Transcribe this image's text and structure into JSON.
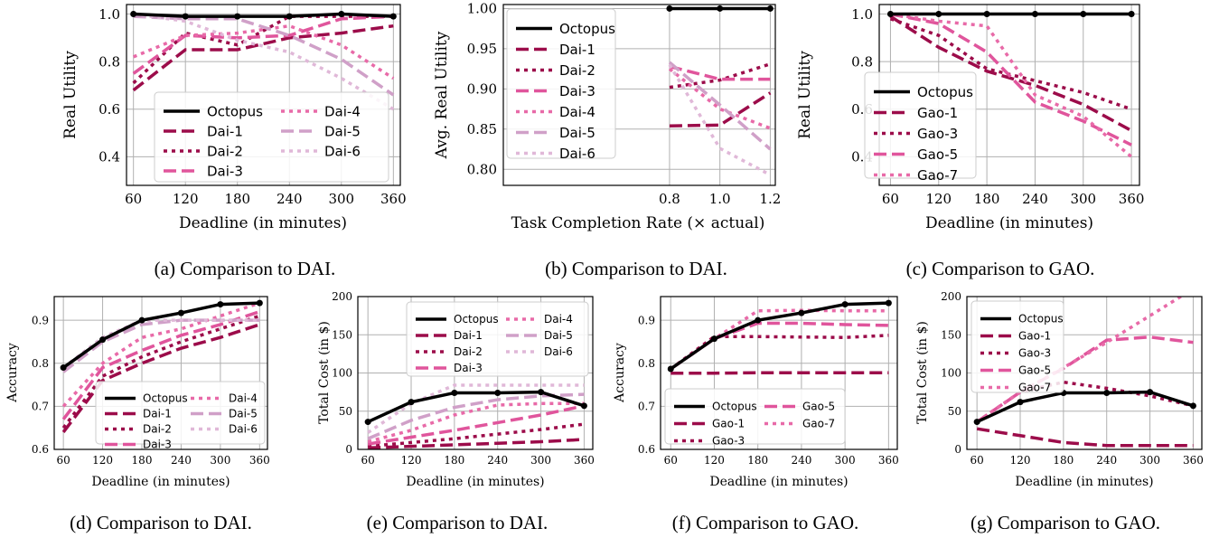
{
  "colors": {
    "black": "#000000",
    "c1": "#9c0c4a",
    "c2": "#9c0c4a",
    "c3": "#e0559c",
    "c4": "#e86aa8",
    "c5": "#d0a0c8",
    "c6": "#e0b8d8"
  },
  "chart_data": [
    {
      "id": "a",
      "type": "line",
      "xlabel": "Deadline (in minutes)",
      "ylabel": "Real Utility",
      "x": [
        60,
        120,
        180,
        240,
        300,
        360
      ],
      "xticks": [
        "60",
        "120",
        "180",
        "240",
        "300",
        "360"
      ],
      "xlim": [
        52,
        368
      ],
      "ylim": [
        0.28,
        1.04
      ],
      "yticks": [
        "0.4",
        "0.6",
        "0.8",
        "1.0"
      ],
      "ytick_values": [
        0.4,
        0.6,
        0.8,
        1.0
      ],
      "legend": {
        "placement": "lower-center",
        "columns": 2
      },
      "series": [
        {
          "name": "Octopus",
          "values": [
            1.0,
            0.99,
            0.99,
            0.99,
            1.0,
            0.99
          ]
        },
        {
          "name": "Dai-1",
          "values": [
            0.68,
            0.85,
            0.85,
            0.9,
            0.92,
            0.95
          ]
        },
        {
          "name": "Dai-2",
          "values": [
            0.71,
            0.92,
            0.87,
            0.99,
            0.99,
            0.99
          ]
        },
        {
          "name": "Dai-3",
          "values": [
            0.75,
            0.91,
            0.9,
            0.91,
            0.98,
            0.99
          ]
        },
        {
          "name": "Dai-4",
          "values": [
            0.82,
            0.91,
            0.92,
            0.95,
            0.87,
            0.73
          ]
        },
        {
          "name": "Dai-5",
          "values": [
            0.99,
            0.98,
            0.98,
            0.91,
            0.81,
            0.66
          ]
        },
        {
          "name": "Dai-6",
          "values": [
            1.0,
            0.97,
            0.89,
            0.84,
            0.73,
            0.6
          ]
        }
      ]
    },
    {
      "id": "b",
      "type": "line",
      "xlabel": "Task Completion Rate (× actual)",
      "ylabel": "Avg. Real Utility",
      "x": [
        0.8,
        1.0,
        1.2
      ],
      "xticks": [
        "0.8",
        "1.0",
        "1.2"
      ],
      "xlim": [
        0.14,
        1.22
      ],
      "ylim": [
        0.78,
        1.005
      ],
      "yticks": [
        "0.80",
        "0.85",
        "0.90",
        "0.95",
        "1.00"
      ],
      "ytick_values": [
        0.8,
        0.85,
        0.9,
        0.95,
        1.0
      ],
      "legend": {
        "placement": "upper-left",
        "columns": 1
      },
      "series": [
        {
          "name": "Octopus",
          "values": [
            1.0,
            1.0,
            1.0
          ]
        },
        {
          "name": "Dai-1",
          "values": [
            0.854,
            0.855,
            0.895
          ]
        },
        {
          "name": "Dai-2",
          "values": [
            0.902,
            0.911,
            0.931
          ]
        },
        {
          "name": "Dai-3",
          "values": [
            0.928,
            0.912,
            0.912
          ]
        },
        {
          "name": "Dai-4",
          "values": [
            0.925,
            0.875,
            0.851
          ]
        },
        {
          "name": "Dai-5",
          "values": [
            0.933,
            0.88,
            0.825
          ]
        },
        {
          "name": "Dai-6",
          "values": [
            0.93,
            0.826,
            0.793
          ]
        }
      ]
    },
    {
      "id": "c",
      "type": "line",
      "xlabel": "Deadline (in minutes)",
      "ylabel": "Real Utility",
      "x": [
        60,
        120,
        180,
        240,
        300,
        360
      ],
      "xticks": [
        "60",
        "120",
        "180",
        "240",
        "300",
        "360"
      ],
      "xlim": [
        46,
        370
      ],
      "ylim": [
        0.28,
        1.04
      ],
      "yticks": [
        "0.4",
        "0.6",
        "0.8",
        "1.0"
      ],
      "ytick_values": [
        0.4,
        0.6,
        0.8,
        1.0
      ],
      "legend": {
        "placement": "lower-left",
        "columns": 1
      },
      "series": [
        {
          "name": "Octopus",
          "values": [
            1.0,
            1.0,
            1.0,
            1.0,
            1.0,
            1.0
          ]
        },
        {
          "name": "Gao-1",
          "values": [
            0.99,
            0.86,
            0.76,
            0.7,
            0.62,
            0.51
          ]
        },
        {
          "name": "Gao-3",
          "values": [
            0.98,
            0.91,
            0.77,
            0.72,
            0.67,
            0.6
          ]
        },
        {
          "name": "Gao-5",
          "values": [
            1.0,
            0.96,
            0.84,
            0.63,
            0.55,
            0.45
          ]
        },
        {
          "name": "Gao-7",
          "values": [
            1.0,
            0.97,
            0.95,
            0.66,
            0.57,
            0.4
          ]
        }
      ]
    },
    {
      "id": "d",
      "type": "line",
      "xlabel": "Deadline (in minutes)",
      "ylabel": "Accuracy",
      "x": [
        60,
        120,
        180,
        240,
        300,
        360
      ],
      "xticks": [
        "60",
        "120",
        "180",
        "240",
        "300",
        "360"
      ],
      "xlim": [
        46,
        372
      ],
      "ylim": [
        0.6,
        0.955
      ],
      "yticks": [
        "0.6",
        "0.7",
        "0.8",
        "0.9"
      ],
      "ytick_values": [
        0.6,
        0.7,
        0.8,
        0.9
      ],
      "legend": {
        "placement": "lower-right",
        "columns": 2
      },
      "series": [
        {
          "name": "Octopus",
          "values": [
            0.79,
            0.855,
            0.9,
            0.917,
            0.937,
            0.94
          ]
        },
        {
          "name": "Dai-1",
          "values": [
            0.64,
            0.76,
            0.8,
            0.835,
            0.86,
            0.89
          ]
        },
        {
          "name": "Dai-2",
          "values": [
            0.65,
            0.77,
            0.815,
            0.85,
            0.88,
            0.91
          ]
        },
        {
          "name": "Dai-3",
          "values": [
            0.67,
            0.79,
            0.83,
            0.865,
            0.89,
            0.92
          ]
        },
        {
          "name": "Dai-4",
          "values": [
            0.7,
            0.8,
            0.86,
            0.88,
            0.91,
            0.94
          ]
        },
        {
          "name": "Dai-5",
          "values": [
            0.78,
            0.85,
            0.89,
            0.9,
            0.9,
            0.9
          ]
        },
        {
          "name": "Dai-6",
          "values": [
            0.79,
            0.86,
            0.9,
            0.9,
            0.9,
            0.9
          ]
        }
      ]
    },
    {
      "id": "e",
      "type": "line",
      "xlabel": "Deadline (in minutes)",
      "ylabel": "Total Cost (in $)",
      "x": [
        60,
        120,
        180,
        240,
        300,
        360
      ],
      "xticks": [
        "60",
        "120",
        "180",
        "240",
        "300",
        "360"
      ],
      "xlim": [
        46,
        372
      ],
      "ylim": [
        0,
        200
      ],
      "yticks": [
        "0",
        "50",
        "100",
        "150",
        "200"
      ],
      "ytick_values": [
        0,
        50,
        100,
        150,
        200
      ],
      "legend": {
        "placement": "upper-right",
        "columns": 2
      },
      "series": [
        {
          "name": "Octopus",
          "values": [
            36,
            62,
            74,
            74,
            75,
            57
          ]
        },
        {
          "name": "Dai-1",
          "values": [
            2,
            4,
            6,
            8,
            10,
            13
          ]
        },
        {
          "name": "Dai-2",
          "values": [
            4,
            9,
            14,
            20,
            26,
            33
          ]
        },
        {
          "name": "Dai-3",
          "values": [
            7,
            16,
            25,
            35,
            45,
            57
          ]
        },
        {
          "name": "Dai-4",
          "values": [
            10,
            25,
            45,
            58,
            60,
            60
          ]
        },
        {
          "name": "Dai-5",
          "values": [
            14,
            38,
            55,
            65,
            70,
            72
          ]
        },
        {
          "name": "Dai-6",
          "values": [
            22,
            60,
            84,
            84,
            84,
            84
          ]
        }
      ]
    },
    {
      "id": "f",
      "type": "line",
      "xlabel": "Deadline (in minutes)",
      "ylabel": "Accuracy",
      "x": [
        60,
        120,
        180,
        240,
        300,
        360
      ],
      "xticks": [
        "60",
        "120",
        "180",
        "240",
        "300",
        "360"
      ],
      "xlim": [
        46,
        372
      ],
      "ylim": [
        0.6,
        0.955
      ],
      "yticks": [
        "0.6",
        "0.7",
        "0.8",
        "0.9"
      ],
      "ytick_values": [
        0.6,
        0.7,
        0.8,
        0.9
      ],
      "legend": {
        "placement": "lower-center",
        "columns": 2
      },
      "series": [
        {
          "name": "Octopus",
          "values": [
            0.787,
            0.857,
            0.9,
            0.917,
            0.937,
            0.94
          ]
        },
        {
          "name": "Gao-1",
          "values": [
            0.777,
            0.777,
            0.778,
            0.778,
            0.778,
            0.778
          ]
        },
        {
          "name": "Gao-3",
          "values": [
            0.787,
            0.862,
            0.862,
            0.861,
            0.86,
            0.865
          ]
        },
        {
          "name": "Gao-5",
          "values": [
            0.787,
            0.857,
            0.893,
            0.893,
            0.89,
            0.888
          ]
        },
        {
          "name": "Gao-7",
          "values": [
            0.787,
            0.857,
            0.922,
            0.923,
            0.922,
            0.922
          ]
        }
      ]
    },
    {
      "id": "g",
      "type": "line",
      "xlabel": "Deadline (in minutes)",
      "ylabel": "Total Cost (in $)",
      "x": [
        60,
        120,
        180,
        240,
        300,
        360
      ],
      "xticks": [
        "60",
        "120",
        "180",
        "240",
        "300",
        "360"
      ],
      "xlim": [
        46,
        372
      ],
      "ylim": [
        0,
        200
      ],
      "yticks": [
        "0",
        "50",
        "100",
        "150",
        "200"
      ],
      "ytick_values": [
        0,
        50,
        100,
        150,
        200
      ],
      "legend": {
        "placement": "upper-left",
        "columns": 1
      },
      "series": [
        {
          "name": "Octopus",
          "values": [
            36,
            62,
            74,
            74,
            75,
            57
          ]
        },
        {
          "name": "Gao-1",
          "values": [
            27,
            18,
            9,
            5,
            5,
            5
          ]
        },
        {
          "name": "Gao-3",
          "values": [
            36,
            75,
            88,
            80,
            70,
            57
          ]
        },
        {
          "name": "Gao-5",
          "values": [
            36,
            75,
            106,
            143,
            147,
            140
          ]
        },
        {
          "name": "Gao-7",
          "values": [
            36,
            75,
            107,
            140,
            175,
            210
          ]
        }
      ]
    }
  ],
  "captions": {
    "a": "(a) Comparison to DAI.",
    "b": "(b) Comparison to DAI.",
    "c": "(c) Comparison to GAO.",
    "d": "(d) Comparison to DAI.",
    "e": "(e) Comparison to DAI.",
    "f": "(f) Comparison to GAO.",
    "g": "(g) Comparison to GAO."
  }
}
